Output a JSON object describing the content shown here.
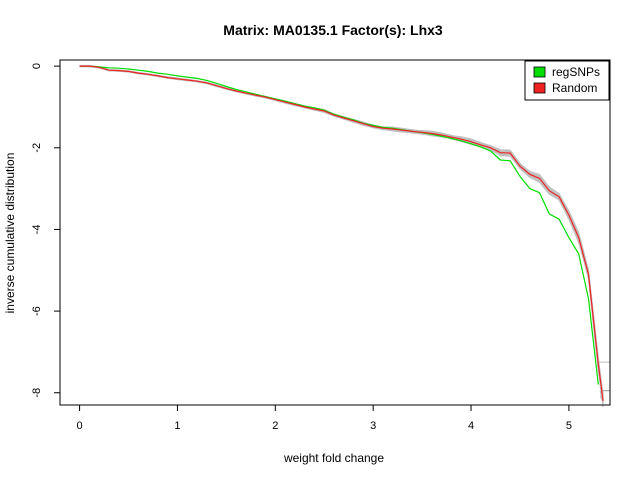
{
  "chart_data": {
    "type": "line",
    "title": "Matrix: MA0135.1 Factor(s): Lhx3",
    "xlabel": "weight fold change",
    "ylabel": "inverse cumulative distribution",
    "xlim": [
      -0.2,
      5.42
    ],
    "ylim": [
      -8.3,
      0.15
    ],
    "x_ticks": [
      0,
      1,
      2,
      3,
      4,
      5
    ],
    "y_ticks": [
      0,
      -2,
      -4,
      -6,
      -8
    ],
    "grid": false,
    "legend_position": "top-right",
    "colors": {
      "regSNPs": "#00dd00",
      "Random": "#ee2222",
      "background_runs": "#bfbfbf"
    },
    "series": [
      {
        "name": "regSNPs",
        "x": [
          0,
          0.1,
          0.2,
          0.3,
          0.4,
          0.5,
          0.6,
          0.7,
          0.8,
          0.9,
          1.0,
          1.1,
          1.2,
          1.3,
          1.4,
          1.5,
          1.6,
          1.7,
          1.8,
          1.9,
          2.0,
          2.1,
          2.2,
          2.3,
          2.4,
          2.5,
          2.6,
          2.7,
          2.8,
          2.9,
          3.0,
          3.1,
          3.2,
          3.3,
          3.4,
          3.5,
          3.6,
          3.7,
          3.8,
          3.9,
          4.0,
          4.1,
          4.2,
          4.3,
          4.4,
          4.5,
          4.6,
          4.7,
          4.8,
          4.9,
          5.0,
          5.1,
          5.2,
          5.3
        ],
        "y": [
          0,
          0,
          -0.02,
          -0.04,
          -0.05,
          -0.07,
          -0.1,
          -0.13,
          -0.17,
          -0.2,
          -0.24,
          -0.27,
          -0.3,
          -0.35,
          -0.42,
          -0.5,
          -0.57,
          -0.63,
          -0.69,
          -0.75,
          -0.8,
          -0.86,
          -0.92,
          -0.98,
          -1.02,
          -1.08,
          -1.18,
          -1.25,
          -1.32,
          -1.4,
          -1.45,
          -1.5,
          -1.52,
          -1.56,
          -1.6,
          -1.63,
          -1.67,
          -1.72,
          -1.77,
          -1.83,
          -1.9,
          -1.98,
          -2.08,
          -2.3,
          -2.32,
          -2.7,
          -3.0,
          -3.1,
          -3.62,
          -3.75,
          -4.2,
          -4.6,
          -5.7,
          -7.8
        ]
      },
      {
        "name": "Random",
        "x": [
          0,
          0.1,
          0.2,
          0.3,
          0.4,
          0.5,
          0.6,
          0.7,
          0.8,
          0.9,
          1.0,
          1.1,
          1.2,
          1.3,
          1.4,
          1.5,
          1.6,
          1.7,
          1.8,
          1.9,
          2.0,
          2.1,
          2.2,
          2.3,
          2.4,
          2.5,
          2.6,
          2.7,
          2.8,
          2.9,
          3.0,
          3.1,
          3.2,
          3.3,
          3.4,
          3.5,
          3.6,
          3.7,
          3.8,
          3.9,
          4.0,
          4.1,
          4.2,
          4.3,
          4.4,
          4.5,
          4.6,
          4.7,
          4.8,
          4.9,
          5.0,
          5.1,
          5.15,
          5.2,
          5.25,
          5.3,
          5.35
        ],
        "y": [
          0,
          0,
          -0.03,
          -0.1,
          -0.11,
          -0.13,
          -0.17,
          -0.2,
          -0.24,
          -0.28,
          -0.31,
          -0.34,
          -0.37,
          -0.41,
          -0.48,
          -0.55,
          -0.61,
          -0.66,
          -0.71,
          -0.76,
          -0.82,
          -0.88,
          -0.94,
          -1.0,
          -1.05,
          -1.1,
          -1.2,
          -1.27,
          -1.34,
          -1.41,
          -1.48,
          -1.52,
          -1.54,
          -1.57,
          -1.6,
          -1.62,
          -1.65,
          -1.69,
          -1.74,
          -1.79,
          -1.85,
          -1.93,
          -2.0,
          -2.12,
          -2.13,
          -2.45,
          -2.65,
          -2.75,
          -3.05,
          -3.2,
          -3.65,
          -4.2,
          -4.65,
          -5.1,
          -6.2,
          -7.3,
          -8.2
        ]
      }
    ],
    "legend": [
      {
        "label": "regSNPs",
        "color": "#00dd00"
      },
      {
        "label": "Random",
        "color": "#ee2222"
      }
    ]
  }
}
